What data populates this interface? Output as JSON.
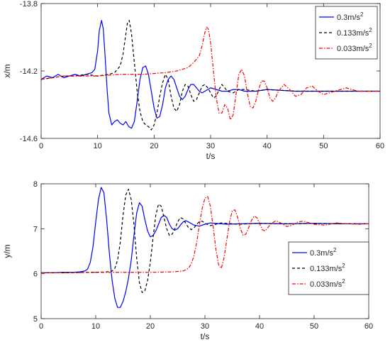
{
  "chart_data": [
    {
      "type": "line",
      "title": "",
      "xlabel": "t/s",
      "ylabel": "x/m",
      "xlim": [
        0,
        60
      ],
      "ylim": [
        -14.6,
        -13.8
      ],
      "xticks": [
        0,
        10,
        20,
        30,
        40,
        50,
        60
      ],
      "yticks": [
        -14.6,
        -14.2,
        -13.8
      ],
      "ytick_labels": [
        "-14.6",
        "-14.2",
        "-13.8"
      ],
      "grid": false,
      "legend_position": "top-right",
      "series": [
        {
          "name": "0.3m/s^2",
          "legend_base": "0.3m/s",
          "legend_sup": "2",
          "color": "#0000ff",
          "dash": "solid",
          "x": [
            0,
            1,
            2,
            3,
            4,
            5,
            6,
            7,
            8,
            9,
            9.5,
            10,
            10.3,
            10.7,
            11,
            11.3,
            11.7,
            12,
            12.5,
            13,
            13.5,
            14,
            14.5,
            15,
            15.5,
            16,
            16.5,
            17,
            17.5,
            18,
            18.5,
            19,
            19.5,
            20,
            20.5,
            21,
            21.5,
            22,
            22.5,
            23,
            23.5,
            24,
            24.5,
            25,
            25.5,
            26,
            26.5,
            27,
            27.5,
            28,
            28.5,
            29,
            29.5,
            30,
            31,
            32,
            33,
            34,
            35,
            36,
            38,
            40,
            45,
            50,
            55,
            60
          ],
          "y": [
            -14.25,
            -14.23,
            -14.24,
            -14.22,
            -14.24,
            -14.23,
            -14.22,
            -14.23,
            -14.22,
            -14.21,
            -14.19,
            -14.08,
            -13.96,
            -13.9,
            -13.95,
            -14.1,
            -14.32,
            -14.45,
            -14.52,
            -14.5,
            -14.49,
            -14.51,
            -14.52,
            -14.5,
            -14.53,
            -14.54,
            -14.5,
            -14.38,
            -14.25,
            -14.18,
            -14.17,
            -14.22,
            -14.32,
            -14.42,
            -14.48,
            -14.47,
            -14.4,
            -14.3,
            -14.25,
            -14.23,
            -14.25,
            -14.3,
            -14.35,
            -14.37,
            -14.35,
            -14.31,
            -14.28,
            -14.28,
            -14.3,
            -14.32,
            -14.33,
            -14.32,
            -14.31,
            -14.3,
            -14.31,
            -14.32,
            -14.32,
            -14.31,
            -14.31,
            -14.32,
            -14.32,
            -14.31,
            -14.32,
            -14.32,
            -14.32,
            -14.32
          ]
        },
        {
          "name": "0.133m/s^2",
          "legend_base": "0.133m/s",
          "legend_sup": "2",
          "color": "#000000",
          "dash": "dashed",
          "x": [
            0,
            2,
            4,
            6,
            8,
            10,
            12,
            13,
            14,
            14.5,
            15,
            15.3,
            15.6,
            16,
            16.5,
            17,
            17.5,
            18,
            18.5,
            19,
            19.5,
            20,
            20.5,
            21,
            21.5,
            22,
            22.5,
            23,
            23.5,
            24,
            24.5,
            25,
            25.5,
            26,
            26.5,
            27,
            27.5,
            28,
            28.5,
            29,
            29.5,
            30,
            30.5,
            31,
            31.5,
            32,
            32.5,
            33,
            34,
            35,
            36,
            38,
            40,
            45,
            50,
            55,
            60
          ],
          "y": [
            -14.25,
            -14.24,
            -14.23,
            -14.23,
            -14.22,
            -14.23,
            -14.22,
            -14.21,
            -14.17,
            -14.1,
            -13.98,
            -13.91,
            -13.9,
            -13.98,
            -14.15,
            -14.32,
            -14.44,
            -14.5,
            -14.52,
            -14.53,
            -14.55,
            -14.52,
            -14.45,
            -14.35,
            -14.27,
            -14.22,
            -14.25,
            -14.35,
            -14.42,
            -14.44,
            -14.4,
            -14.32,
            -14.28,
            -14.29,
            -14.34,
            -14.38,
            -14.37,
            -14.33,
            -14.29,
            -14.28,
            -14.3,
            -14.33,
            -14.36,
            -14.35,
            -14.31,
            -14.28,
            -14.3,
            -14.32,
            -14.33,
            -14.31,
            -14.31,
            -14.32,
            -14.31,
            -14.32,
            -14.32,
            -14.32,
            -14.32
          ]
        },
        {
          "name": "0.033m/s^2",
          "legend_base": "0.033m/s",
          "legend_sup": "2",
          "color": "#ff0000",
          "dash": "dashdot",
          "x": [
            0,
            2,
            4,
            6,
            8,
            10,
            14,
            18,
            22,
            24,
            26,
            27,
            28,
            28.5,
            29,
            29.3,
            29.6,
            30,
            30.5,
            31,
            31.5,
            32,
            32.5,
            33,
            33.5,
            34,
            34.5,
            35,
            35.5,
            36,
            36.5,
            37,
            37.5,
            38,
            38.5,
            39,
            39.5,
            40,
            40.5,
            41,
            41.5,
            42,
            43,
            44,
            45,
            46,
            47,
            48,
            49,
            50,
            52,
            54,
            56,
            58,
            60
          ],
          "y": [
            -14.25,
            -14.24,
            -14.23,
            -14.23,
            -14.23,
            -14.23,
            -14.22,
            -14.22,
            -14.21,
            -14.2,
            -14.18,
            -14.15,
            -14.11,
            -14.05,
            -13.97,
            -13.94,
            -13.95,
            -14.03,
            -14.2,
            -14.36,
            -14.45,
            -14.45,
            -14.4,
            -14.42,
            -14.49,
            -14.46,
            -14.34,
            -14.22,
            -14.19,
            -14.23,
            -14.33,
            -14.41,
            -14.42,
            -14.38,
            -14.31,
            -14.26,
            -14.26,
            -14.3,
            -14.36,
            -14.38,
            -14.36,
            -14.32,
            -14.28,
            -14.31,
            -14.35,
            -14.34,
            -14.3,
            -14.29,
            -14.32,
            -14.34,
            -14.32,
            -14.3,
            -14.32,
            -14.32,
            -14.32
          ]
        }
      ]
    },
    {
      "type": "line",
      "title": "",
      "xlabel": "t/s",
      "ylabel": "y/m",
      "xlim": [
        0,
        60
      ],
      "ylim": [
        5,
        8
      ],
      "xticks": [
        0,
        10,
        20,
        30,
        40,
        50,
        60
      ],
      "yticks": [
        5,
        6,
        7,
        8
      ],
      "ytick_labels": [
        "5",
        "6",
        "7",
        "8"
      ],
      "grid": false,
      "legend_position": "right",
      "series": [
        {
          "name": "0.3m/s^2",
          "legend_base": "0.3m/s",
          "legend_sup": "2",
          "color": "#0000ff",
          "dash": "solid",
          "x": [
            0,
            2,
            4,
            6,
            7,
            8,
            8.5,
            9,
            9.5,
            10,
            10.5,
            11,
            11.5,
            12,
            12.5,
            13,
            13.5,
            14,
            14.5,
            15,
            15.5,
            16,
            16.5,
            17,
            17.5,
            18,
            18.5,
            19,
            19.5,
            20,
            20.5,
            21,
            21.5,
            22,
            22.5,
            23,
            23.5,
            24,
            24.5,
            25,
            25.5,
            26,
            26.5,
            27,
            28,
            29,
            30,
            31,
            32,
            34,
            36,
            40,
            45,
            50,
            55,
            60
          ],
          "y": [
            6.02,
            6.02,
            6.03,
            6.03,
            6.04,
            6.06,
            6.1,
            6.25,
            6.6,
            7.15,
            7.65,
            7.92,
            7.8,
            7.2,
            6.45,
            5.85,
            5.45,
            5.25,
            5.25,
            5.38,
            5.6,
            5.9,
            6.3,
            6.85,
            7.35,
            7.58,
            7.5,
            7.2,
            6.95,
            6.82,
            6.85,
            6.95,
            7.1,
            7.25,
            7.3,
            7.25,
            7.1,
            7.0,
            6.97,
            7.0,
            7.08,
            7.15,
            7.18,
            7.15,
            7.08,
            7.06,
            7.1,
            7.13,
            7.12,
            7.1,
            7.11,
            7.12,
            7.11,
            7.12,
            7.11,
            7.11
          ]
        },
        {
          "name": "0.133m/s^2",
          "legend_base": "0.133m/s",
          "legend_sup": "2",
          "color": "#000000",
          "dash": "dashed",
          "x": [
            0,
            4,
            8,
            10,
            12,
            13,
            13.5,
            14,
            14.5,
            15,
            15.5,
            16,
            16.5,
            17,
            17.5,
            18,
            18.5,
            19,
            19.5,
            20,
            20.5,
            21,
            21.5,
            22,
            22.5,
            23,
            23.5,
            24,
            24.5,
            25,
            25.5,
            26,
            26.5,
            27,
            27.5,
            28,
            28.5,
            29,
            29.5,
            30,
            31,
            32,
            33,
            34,
            36,
            38,
            40,
            45,
            50,
            55,
            60
          ],
          "y": [
            6.02,
            6.02,
            6.03,
            6.03,
            6.04,
            6.06,
            6.12,
            6.3,
            6.7,
            7.3,
            7.75,
            7.88,
            7.65,
            7.1,
            6.35,
            5.8,
            5.58,
            5.62,
            5.85,
            6.25,
            6.8,
            7.3,
            7.55,
            7.5,
            7.25,
            7.0,
            6.85,
            6.88,
            7.0,
            7.15,
            7.25,
            7.22,
            7.12,
            7.02,
            6.98,
            7.02,
            7.1,
            7.16,
            7.17,
            7.12,
            7.07,
            7.1,
            7.13,
            7.12,
            7.1,
            7.11,
            7.12,
            7.11,
            7.12,
            7.11,
            7.11
          ]
        },
        {
          "name": "0.033m/s^2",
          "legend_base": "0.033m/s",
          "legend_sup": "2",
          "color": "#ff0000",
          "dash": "dashdot",
          "x": [
            0,
            5,
            10,
            15,
            20,
            24,
            26,
            27,
            27.5,
            28,
            28.5,
            29,
            29.5,
            30,
            30.5,
            31,
            31.5,
            32,
            32.5,
            33,
            33.5,
            34,
            34.5,
            35,
            35.5,
            36,
            36.5,
            37,
            37.5,
            38,
            38.5,
            39,
            39.5,
            40,
            40.5,
            41,
            41.5,
            42,
            43,
            44,
            45,
            46,
            47,
            48,
            50,
            52,
            54,
            56,
            58,
            60
          ],
          "y": [
            6.02,
            6.02,
            6.03,
            6.03,
            6.03,
            6.04,
            6.06,
            6.12,
            6.22,
            6.4,
            6.7,
            7.1,
            7.45,
            7.68,
            7.72,
            7.5,
            7.05,
            6.55,
            6.2,
            6.12,
            6.35,
            6.75,
            7.15,
            7.4,
            7.42,
            7.25,
            7.0,
            6.85,
            6.88,
            7.02,
            7.18,
            7.28,
            7.25,
            7.12,
            6.98,
            6.95,
            7.02,
            7.1,
            7.18,
            7.12,
            7.05,
            7.08,
            7.15,
            7.17,
            7.1,
            7.08,
            7.13,
            7.11,
            7.1,
            7.11
          ]
        }
      ]
    }
  ]
}
